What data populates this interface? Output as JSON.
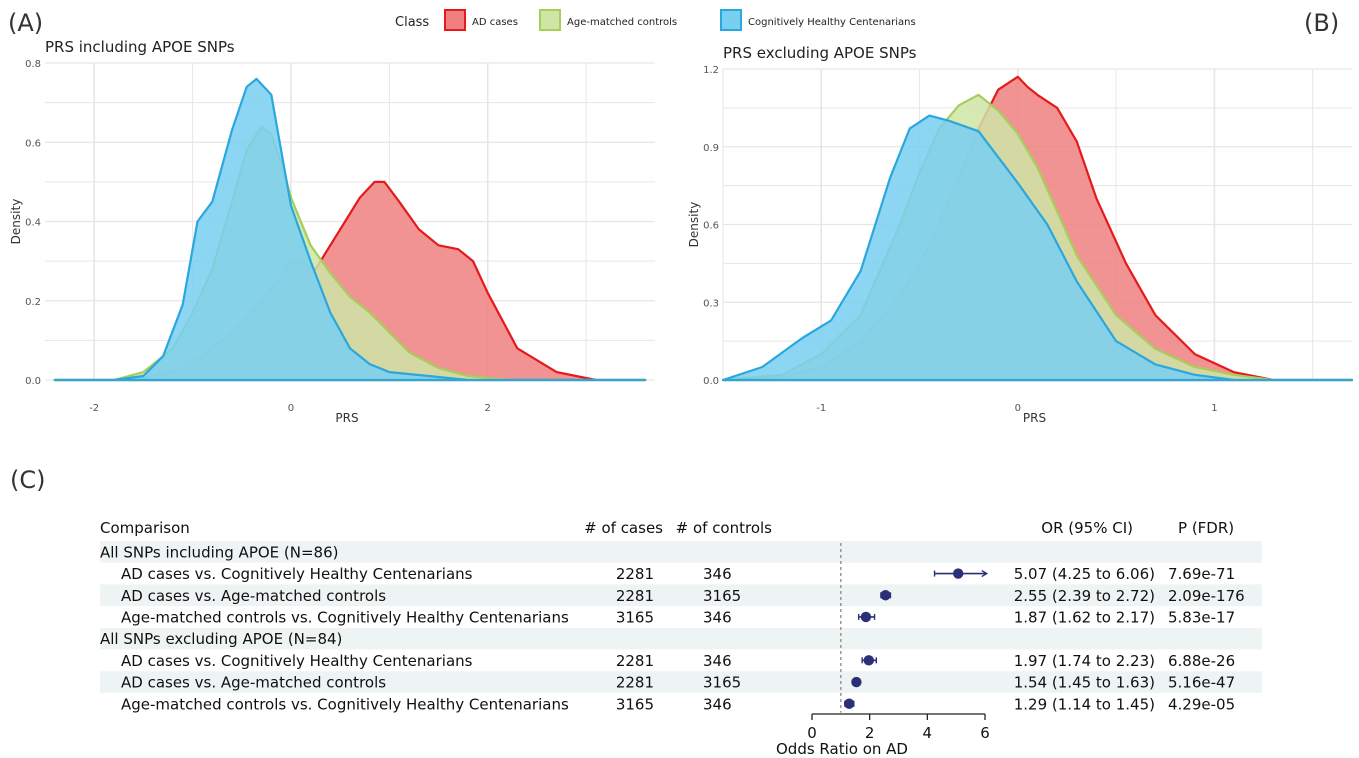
{
  "panel_labels": {
    "a": "(A)",
    "b": "(B)",
    "c": "(C)"
  },
  "legend": {
    "title": "Class",
    "items": [
      {
        "name": "AD cases",
        "fill": "#F08080",
        "stroke": "#E41A1C"
      },
      {
        "name": "Age-matched controls",
        "fill": "#CFE5A6",
        "stroke": "#A6CE5A"
      },
      {
        "name": "Cognitively Healthy Centenarians",
        "fill": "#78CFF2",
        "stroke": "#2AA7DD"
      }
    ]
  },
  "colors": {
    "overlap": "#5FA6A6",
    "forest_point": "#2B2F77",
    "forest_band": "#EEF4F4",
    "grid": "#E6E6E6"
  },
  "chart_data": [
    {
      "type": "area",
      "title": "PRS including APOE SNPs",
      "xlabel": "PRS",
      "ylabel": "Density",
      "xlim": [
        -2.5,
        3.7
      ],
      "ylim": [
        0,
        0.8
      ],
      "x_ticks": [
        -2,
        0,
        2
      ],
      "y_ticks": [
        0.0,
        0.2,
        0.4,
        0.6,
        0.8
      ],
      "x_tick_labels": [
        "-2",
        "0",
        "2"
      ],
      "y_tick_labels": [
        "0.0",
        "0.2",
        "0.4",
        "0.6",
        "0.8"
      ],
      "series": [
        {
          "name": "AD cases",
          "x": [
            -2.4,
            -1.6,
            -1.2,
            -0.9,
            -0.6,
            -0.3,
            -0.1,
            0.0,
            0.1,
            0.25,
            0.4,
            0.55,
            0.7,
            0.85,
            0.95,
            1.1,
            1.3,
            1.5,
            1.7,
            1.85,
            2.0,
            2.3,
            2.7,
            3.1,
            3.6
          ],
          "y": [
            0,
            0,
            0.02,
            0.06,
            0.12,
            0.2,
            0.26,
            0.3,
            0.3,
            0.28,
            0.34,
            0.4,
            0.46,
            0.5,
            0.5,
            0.45,
            0.38,
            0.34,
            0.33,
            0.3,
            0.22,
            0.08,
            0.02,
            0,
            0
          ]
        },
        {
          "name": "Age-matched controls",
          "x": [
            -2.4,
            -1.8,
            -1.5,
            -1.2,
            -1.0,
            -0.8,
            -0.6,
            -0.45,
            -0.3,
            -0.2,
            -0.1,
            0.0,
            0.2,
            0.4,
            0.6,
            0.8,
            1.0,
            1.2,
            1.5,
            1.8,
            2.2,
            2.6,
            3.0,
            3.6
          ],
          "y": [
            0,
            0,
            0.02,
            0.08,
            0.17,
            0.28,
            0.45,
            0.58,
            0.64,
            0.62,
            0.55,
            0.46,
            0.34,
            0.27,
            0.21,
            0.17,
            0.12,
            0.07,
            0.03,
            0.01,
            0,
            0,
            0,
            0
          ]
        },
        {
          "name": "Cognitively Healthy Centenarians",
          "x": [
            -2.4,
            -1.8,
            -1.5,
            -1.3,
            -1.1,
            -0.95,
            -0.8,
            -0.6,
            -0.45,
            -0.35,
            -0.2,
            -0.1,
            0.0,
            0.2,
            0.4,
            0.6,
            0.8,
            1.0,
            1.4,
            1.8,
            2.5,
            3.6
          ],
          "y": [
            0,
            0,
            0.01,
            0.06,
            0.19,
            0.4,
            0.45,
            0.63,
            0.74,
            0.76,
            0.72,
            0.58,
            0.44,
            0.3,
            0.17,
            0.08,
            0.04,
            0.02,
            0.01,
            0,
            0,
            0
          ]
        }
      ]
    },
    {
      "type": "area",
      "title": "PRS excluding APOE SNPs",
      "xlabel": "PRS",
      "ylabel": "Density",
      "xlim": [
        -1.5,
        1.7
      ],
      "ylim": [
        0,
        1.2
      ],
      "x_ticks": [
        -1,
        0,
        1
      ],
      "y_ticks": [
        0.0,
        0.3,
        0.6,
        0.9,
        1.2
      ],
      "x_tick_labels": [
        "-1",
        "0",
        "1"
      ],
      "y_tick_labels": [
        "0.0",
        "0.3",
        "0.6",
        "0.9",
        "1.2"
      ],
      "series": [
        {
          "name": "AD cases",
          "x": [
            -1.5,
            -1.2,
            -1.0,
            -0.8,
            -0.6,
            -0.45,
            -0.3,
            -0.2,
            -0.1,
            0.0,
            0.05,
            0.1,
            0.2,
            0.3,
            0.4,
            0.55,
            0.7,
            0.9,
            1.1,
            1.3,
            1.7
          ],
          "y": [
            0,
            0.01,
            0.05,
            0.15,
            0.32,
            0.52,
            0.78,
            0.97,
            1.12,
            1.17,
            1.13,
            1.1,
            1.05,
            0.92,
            0.7,
            0.45,
            0.25,
            0.1,
            0.03,
            0,
            0
          ]
        },
        {
          "name": "Age-matched controls",
          "x": [
            -1.5,
            -1.2,
            -1.0,
            -0.8,
            -0.6,
            -0.5,
            -0.4,
            -0.3,
            -0.2,
            -0.1,
            0.0,
            0.1,
            0.2,
            0.3,
            0.5,
            0.7,
            0.9,
            1.1,
            1.3,
            1.7
          ],
          "y": [
            0,
            0.02,
            0.1,
            0.25,
            0.6,
            0.8,
            0.97,
            1.06,
            1.1,
            1.04,
            0.95,
            0.82,
            0.65,
            0.48,
            0.25,
            0.12,
            0.05,
            0.02,
            0,
            0
          ]
        },
        {
          "name": "Cognitively Healthy Centenarians",
          "x": [
            -1.5,
            -1.3,
            -1.1,
            -0.95,
            -0.8,
            -0.65,
            -0.55,
            -0.45,
            -0.35,
            -0.2,
            0.0,
            0.15,
            0.3,
            0.5,
            0.7,
            0.9,
            1.1,
            1.4,
            1.7
          ],
          "y": [
            0,
            0.05,
            0.16,
            0.23,
            0.42,
            0.78,
            0.97,
            1.02,
            1.0,
            0.96,
            0.76,
            0.6,
            0.38,
            0.15,
            0.06,
            0.02,
            0,
            0,
            0
          ]
        }
      ]
    },
    {
      "type": "table",
      "subtype": "forest",
      "headers": {
        "comparison": "Comparison",
        "cases": "# of cases",
        "controls": "# of controls",
        "or": "OR (95% CI)",
        "p": "P (FDR)"
      },
      "xlabel": "Odds Ratio on AD",
      "xlim": [
        0,
        6
      ],
      "x_ticks": [
        0,
        2,
        4,
        6
      ],
      "x_tick_labels": [
        "0",
        "2",
        "4",
        "6"
      ],
      "reference_line": 1,
      "groups": [
        {
          "label": "All SNPs including APOE (N=86)",
          "rows": [
            {
              "comparison": "AD cases vs. Cognitively Healthy Centenarians",
              "cases": "2281",
              "controls": "346",
              "or_text": "5.07 (4.25 to 6.06)",
              "p": "7.69e-71",
              "or": 5.07,
              "lo": 4.25,
              "hi": 6.06
            },
            {
              "comparison": "AD cases vs. Age-matched controls",
              "cases": "2281",
              "controls": "3165",
              "or_text": "2.55 (2.39 to 2.72)",
              "p": "2.09e-176",
              "or": 2.55,
              "lo": 2.39,
              "hi": 2.72
            },
            {
              "comparison": "Age-matched controls vs. Cognitively Healthy Centenarians",
              "cases": "3165",
              "controls": "346",
              "or_text": "1.87 (1.62 to 2.17)",
              "p": "5.83e-17",
              "or": 1.87,
              "lo": 1.62,
              "hi": 2.17
            }
          ]
        },
        {
          "label": "All SNPs excluding APOE (N=84)",
          "rows": [
            {
              "comparison": "AD cases vs. Cognitively Healthy Centenarians",
              "cases": "2281",
              "controls": "346",
              "or_text": "1.97 (1.74 to 2.23)",
              "p": "6.88e-26",
              "or": 1.97,
              "lo": 1.74,
              "hi": 2.23
            },
            {
              "comparison": "AD cases vs. Age-matched controls",
              "cases": "2281",
              "controls": "3165",
              "or_text": "1.54 (1.45 to 1.63)",
              "p": "5.16e-47",
              "or": 1.54,
              "lo": 1.45,
              "hi": 1.63
            },
            {
              "comparison": "Age-matched controls vs. Cognitively Healthy Centenarians",
              "cases": "3165",
              "controls": "346",
              "or_text": "1.29 (1.14 to 1.45)",
              "p": "4.29e-05",
              "or": 1.29,
              "lo": 1.14,
              "hi": 1.45
            }
          ]
        }
      ]
    }
  ]
}
